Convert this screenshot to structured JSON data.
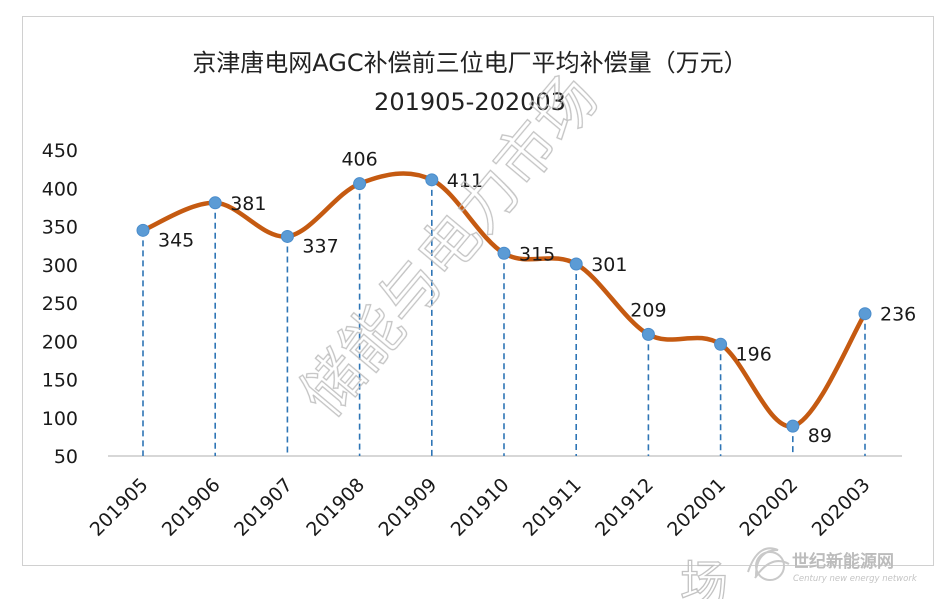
{
  "chart_data": {
    "type": "line",
    "title": "京津唐电网AGC补偿前三位电厂平均补偿量（万元）",
    "subtitle": "201905-202003",
    "categories": [
      "201905",
      "201906",
      "201907",
      "201908",
      "201909",
      "201910",
      "201911",
      "201912",
      "202001",
      "202002",
      "202003"
    ],
    "values": [
      345,
      381,
      337,
      406,
      411,
      315,
      301,
      209,
      196,
      89,
      236
    ],
    "xlabel": "",
    "ylabel": "",
    "ylim": [
      50,
      450
    ],
    "yticks": [
      50,
      100,
      150,
      200,
      250,
      300,
      350,
      400,
      450
    ],
    "smooth": true,
    "grid": false,
    "drop_lines": true,
    "data_labels": true,
    "line_color": "#c55a11",
    "marker_color": "#5b9bd5",
    "drop_line_color": "#2e75b6"
  },
  "watermark": {
    "text": "储能与电力市场",
    "bottom_text": "场"
  },
  "branding": {
    "name": "世纪新能源网",
    "english": "Century new energy network"
  }
}
